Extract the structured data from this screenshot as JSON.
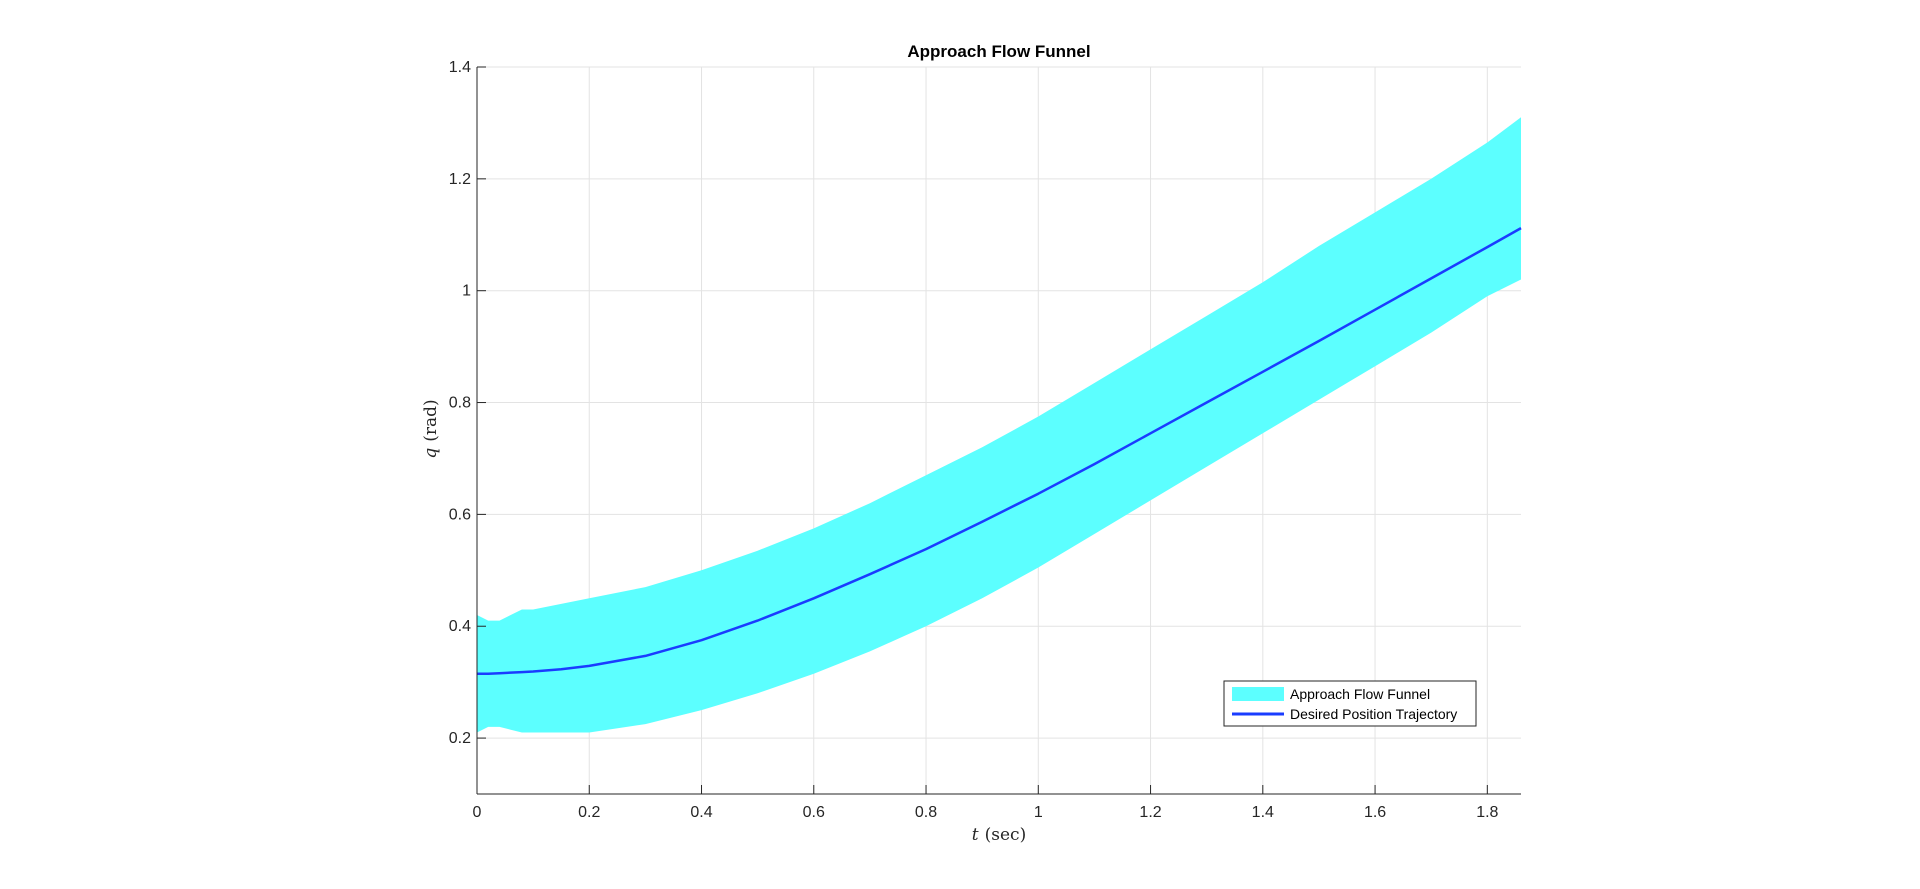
{
  "chart_data": {
    "type": "area",
    "title": "Approach Flow Funnel",
    "xlabel_var": "t",
    "xlabel_unit": "(sec)",
    "ylabel_var": "q",
    "ylabel_unit": "(rad)",
    "xlim": [
      0,
      1.86
    ],
    "ylim": [
      0.1,
      1.4
    ],
    "xticks": [
      "0",
      "0.2",
      "0.4",
      "0.6",
      "0.8",
      "1",
      "1.2",
      "1.4",
      "1.6",
      "1.8"
    ],
    "xtick_values": [
      0,
      0.2,
      0.4,
      0.6,
      0.8,
      1.0,
      1.2,
      1.4,
      1.6,
      1.8
    ],
    "yticks": [
      "0.2",
      "0.4",
      "0.6",
      "0.8",
      "1",
      "1.2",
      "1.4"
    ],
    "ytick_values": [
      0.2,
      0.4,
      0.6,
      0.8,
      1.0,
      1.2,
      1.4
    ],
    "grid": true,
    "legend_position": "bottom-right",
    "x": [
      0,
      0.02,
      0.04,
      0.06,
      0.08,
      0.1,
      0.15,
      0.2,
      0.3,
      0.4,
      0.5,
      0.6,
      0.7,
      0.8,
      0.9,
      1.0,
      1.1,
      1.2,
      1.3,
      1.4,
      1.5,
      1.6,
      1.7,
      1.8,
      1.86
    ],
    "series": [
      {
        "name": "Approach Flow Funnel",
        "kind": "band",
        "color": "#5cffff",
        "upper": [
          0.42,
          0.41,
          0.41,
          0.42,
          0.43,
          0.43,
          0.44,
          0.45,
          0.47,
          0.5,
          0.535,
          0.575,
          0.62,
          0.67,
          0.72,
          0.775,
          0.835,
          0.895,
          0.955,
          1.015,
          1.08,
          1.14,
          1.2,
          1.265,
          1.31
        ],
        "lower": [
          0.21,
          0.22,
          0.22,
          0.215,
          0.21,
          0.21,
          0.21,
          0.21,
          0.225,
          0.25,
          0.28,
          0.315,
          0.355,
          0.4,
          0.45,
          0.505,
          0.565,
          0.625,
          0.685,
          0.745,
          0.805,
          0.865,
          0.925,
          0.99,
          1.02
        ]
      },
      {
        "name": "Desired Position Trajectory",
        "kind": "line",
        "color": "#1a3cff",
        "values": [
          0.315,
          0.315,
          0.316,
          0.317,
          0.318,
          0.319,
          0.323,
          0.329,
          0.347,
          0.375,
          0.41,
          0.45,
          0.493,
          0.538,
          0.587,
          0.637,
          0.69,
          0.745,
          0.8,
          0.855,
          0.91,
          0.966,
          1.022,
          1.078,
          1.112
        ]
      }
    ]
  }
}
